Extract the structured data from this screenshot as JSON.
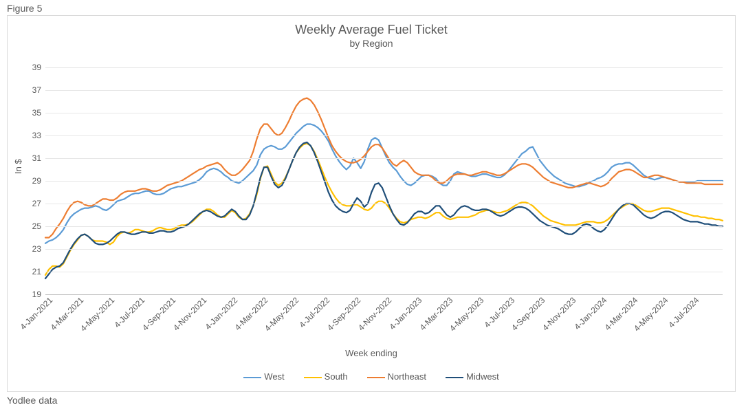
{
  "figure_label": "Figure 5",
  "footer": "Yodlee data",
  "chart": {
    "type": "line",
    "title": "Weekly Average Fuel Ticket",
    "subtitle": "by Region",
    "title_fontsize": 18,
    "subtitle_fontsize": 14,
    "title_color": "#595959",
    "x_axis": {
      "label": "Week ending",
      "tick_labels": [
        "4-Jan-2021",
        "4-Mar-2021",
        "4-May-2021",
        "4-Jul-2021",
        "4-Sep-2021",
        "4-Nov-2021",
        "4-Jan-2022",
        "4-Mar-2022",
        "4-May-2022",
        "4-Jul-2022",
        "4-Sep-2022",
        "4-Nov-2022",
        "4-Jan-2023",
        "4-Mar-2023",
        "4-May-2023",
        "4-Jul-2023",
        "4-Sep-2023",
        "4-Nov-2023",
        "4-Jan-2024",
        "4-Mar-2024",
        "4-May-2024",
        "4-Jul-2024"
      ],
      "label_fontsize": 13,
      "tick_fontsize": 12,
      "tick_rotation_deg": -45
    },
    "y_axis": {
      "label": "In $",
      "min": 19,
      "max": 39,
      "tick_step": 2,
      "label_fontsize": 13,
      "tick_fontsize": 12
    },
    "grid": {
      "visible": true,
      "color": "#e6e6e6"
    },
    "background_color": "#ffffff",
    "plot_border_color": "#d9d9d9",
    "num_points": 190,
    "legend": {
      "position": "bottom-center",
      "items": [
        {
          "name": "West",
          "color": "#5b9bd5"
        },
        {
          "name": "South",
          "color": "#ffc000"
        },
        {
          "name": "Northeast",
          "color": "#ed7d31"
        },
        {
          "name": "Midwest",
          "color": "#1f4e79"
        }
      ]
    },
    "line_width": 2.2,
    "series": {
      "West": [
        23.5,
        23.7,
        23.8,
        24.0,
        24.3,
        24.7,
        25.3,
        25.8,
        26.1,
        26.3,
        26.5,
        26.6,
        26.6,
        26.7,
        26.8,
        26.7,
        26.5,
        26.4,
        26.6,
        26.9,
        27.2,
        27.3,
        27.4,
        27.6,
        27.8,
        27.9,
        27.9,
        28.0,
        28.1,
        28.1,
        27.9,
        27.8,
        27.8,
        27.9,
        28.1,
        28.3,
        28.4,
        28.5,
        28.5,
        28.6,
        28.7,
        28.8,
        28.9,
        29.1,
        29.4,
        29.8,
        30.0,
        30.1,
        30.0,
        29.8,
        29.5,
        29.3,
        29.0,
        28.9,
        28.8,
        29.0,
        29.3,
        29.6,
        29.9,
        30.4,
        31.3,
        31.8,
        32.0,
        32.1,
        32.0,
        31.8,
        31.8,
        32.0,
        32.4,
        32.8,
        33.2,
        33.5,
        33.8,
        34.0,
        34.0,
        33.9,
        33.7,
        33.4,
        33.0,
        32.5,
        31.8,
        31.2,
        30.7,
        30.3,
        30.0,
        30.3,
        31.0,
        30.6,
        30.1,
        30.7,
        31.8,
        32.6,
        32.8,
        32.6,
        31.9,
        31.2,
        30.6,
        30.2,
        29.9,
        29.4,
        29.0,
        28.7,
        28.6,
        28.8,
        29.1,
        29.4,
        29.5,
        29.5,
        29.4,
        29.2,
        28.8,
        28.6,
        28.6,
        29.0,
        29.6,
        29.8,
        29.7,
        29.6,
        29.5,
        29.4,
        29.4,
        29.5,
        29.6,
        29.6,
        29.5,
        29.4,
        29.3,
        29.3,
        29.5,
        29.8,
        30.2,
        30.6,
        31.0,
        31.4,
        31.6,
        31.9,
        32.0,
        31.4,
        30.8,
        30.4,
        30.0,
        29.7,
        29.4,
        29.2,
        29.0,
        28.8,
        28.7,
        28.6,
        28.5,
        28.5,
        28.6,
        28.7,
        28.9,
        29.0,
        29.2,
        29.3,
        29.5,
        29.8,
        30.2,
        30.4,
        30.5,
        30.5,
        30.6,
        30.6,
        30.4,
        30.1,
        29.8,
        29.5,
        29.3,
        29.2,
        29.1,
        29.2,
        29.3,
        29.3,
        29.2,
        29.1,
        29.0,
        28.9,
        28.9,
        28.9,
        28.9,
        28.9,
        29.0,
        29.0,
        29.0,
        29.0,
        29.0,
        29.0,
        29.0,
        29.0
      ],
      "South": [
        20.7,
        21.2,
        21.5,
        21.5,
        21.4,
        21.7,
        22.3,
        22.9,
        23.4,
        23.8,
        24.2,
        24.3,
        24.1,
        23.8,
        23.7,
        23.7,
        23.7,
        23.6,
        23.4,
        23.6,
        24.1,
        24.4,
        24.5,
        24.4,
        24.5,
        24.7,
        24.7,
        24.6,
        24.5,
        24.5,
        24.6,
        24.8,
        24.9,
        24.8,
        24.7,
        24.7,
        24.8,
        25.0,
        25.1,
        25.1,
        25.2,
        25.4,
        25.7,
        26.0,
        26.3,
        26.5,
        26.5,
        26.3,
        26.0,
        25.8,
        25.8,
        26.1,
        26.4,
        26.2,
        25.8,
        25.6,
        25.7,
        26.1,
        26.8,
        27.8,
        29.2,
        30.2,
        30.3,
        29.6,
        28.9,
        28.6,
        28.8,
        29.3,
        30.0,
        30.8,
        31.5,
        31.9,
        32.2,
        32.3,
        32.1,
        31.6,
        30.9,
        30.1,
        29.3,
        28.6,
        28.0,
        27.5,
        27.1,
        26.9,
        26.8,
        26.8,
        26.9,
        26.9,
        26.7,
        26.5,
        26.4,
        26.6,
        27.0,
        27.2,
        27.2,
        27.0,
        26.6,
        26.1,
        25.7,
        25.4,
        25.3,
        25.4,
        25.6,
        25.7,
        25.8,
        25.8,
        25.7,
        25.8,
        26.0,
        26.2,
        26.2,
        25.9,
        25.7,
        25.6,
        25.7,
        25.8,
        25.8,
        25.8,
        25.8,
        25.9,
        26.0,
        26.2,
        26.3,
        26.4,
        26.4,
        26.3,
        26.2,
        26.2,
        26.3,
        26.4,
        26.6,
        26.8,
        27.0,
        27.1,
        27.1,
        27.0,
        26.8,
        26.5,
        26.2,
        25.9,
        25.7,
        25.5,
        25.4,
        25.3,
        25.2,
        25.1,
        25.1,
        25.1,
        25.1,
        25.2,
        25.3,
        25.4,
        25.4,
        25.4,
        25.3,
        25.3,
        25.4,
        25.6,
        25.9,
        26.2,
        26.5,
        26.7,
        26.9,
        27.0,
        27.0,
        26.8,
        26.6,
        26.4,
        26.3,
        26.3,
        26.4,
        26.5,
        26.6,
        26.6,
        26.6,
        26.5,
        26.4,
        26.3,
        26.2,
        26.1,
        26.0,
        25.9,
        25.9,
        25.8,
        25.8,
        25.7,
        25.7,
        25.6,
        25.6,
        25.5
      ],
      "Northeast": [
        24.0,
        24.0,
        24.3,
        24.8,
        25.2,
        25.7,
        26.3,
        26.8,
        27.1,
        27.2,
        27.1,
        26.9,
        26.8,
        26.8,
        27.0,
        27.2,
        27.4,
        27.4,
        27.3,
        27.3,
        27.5,
        27.8,
        28.0,
        28.1,
        28.1,
        28.1,
        28.2,
        28.3,
        28.3,
        28.2,
        28.1,
        28.1,
        28.2,
        28.4,
        28.6,
        28.7,
        28.8,
        28.9,
        29.0,
        29.2,
        29.4,
        29.6,
        29.8,
        30.0,
        30.1,
        30.3,
        30.4,
        30.5,
        30.6,
        30.4,
        30.0,
        29.7,
        29.5,
        29.5,
        29.7,
        30.0,
        30.4,
        30.8,
        31.6,
        32.7,
        33.6,
        34.0,
        34.0,
        33.6,
        33.2,
        33.0,
        33.2,
        33.7,
        34.3,
        35.0,
        35.6,
        36.0,
        36.2,
        36.3,
        36.1,
        35.7,
        35.1,
        34.4,
        33.6,
        32.8,
        32.1,
        31.6,
        31.2,
        30.9,
        30.7,
        30.6,
        30.6,
        30.7,
        30.9,
        31.2,
        31.6,
        32.0,
        32.2,
        32.2,
        31.9,
        31.4,
        30.9,
        30.5,
        30.3,
        30.6,
        30.8,
        30.6,
        30.2,
        29.8,
        29.6,
        29.5,
        29.5,
        29.5,
        29.3,
        29.0,
        28.8,
        28.8,
        29.0,
        29.3,
        29.5,
        29.6,
        29.6,
        29.6,
        29.5,
        29.5,
        29.6,
        29.7,
        29.8,
        29.8,
        29.7,
        29.6,
        29.5,
        29.5,
        29.6,
        29.8,
        30.0,
        30.2,
        30.4,
        30.5,
        30.5,
        30.4,
        30.2,
        29.9,
        29.6,
        29.3,
        29.1,
        28.9,
        28.8,
        28.7,
        28.6,
        28.5,
        28.4,
        28.4,
        28.5,
        28.6,
        28.7,
        28.8,
        28.8,
        28.7,
        28.6,
        28.5,
        28.6,
        28.8,
        29.2,
        29.5,
        29.8,
        29.9,
        30.0,
        30.0,
        29.9,
        29.7,
        29.5,
        29.3,
        29.3,
        29.4,
        29.5,
        29.5,
        29.4,
        29.3,
        29.2,
        29.1,
        29.0,
        28.9,
        28.9,
        28.8,
        28.8,
        28.8,
        28.8,
        28.8,
        28.7,
        28.7,
        28.7,
        28.7,
        28.7,
        28.7
      ],
      "Midwest": [
        20.4,
        20.8,
        21.2,
        21.4,
        21.5,
        21.8,
        22.4,
        23.0,
        23.5,
        23.9,
        24.2,
        24.3,
        24.1,
        23.8,
        23.5,
        23.4,
        23.4,
        23.5,
        23.7,
        24.0,
        24.3,
        24.5,
        24.5,
        24.4,
        24.3,
        24.3,
        24.4,
        24.5,
        24.5,
        24.4,
        24.4,
        24.5,
        24.6,
        24.6,
        24.5,
        24.5,
        24.6,
        24.8,
        24.9,
        25.0,
        25.2,
        25.5,
        25.8,
        26.1,
        26.3,
        26.4,
        26.3,
        26.1,
        25.9,
        25.8,
        25.9,
        26.2,
        26.5,
        26.3,
        25.9,
        25.6,
        25.6,
        26.0,
        26.8,
        28.0,
        29.3,
        30.2,
        30.2,
        29.4,
        28.7,
        28.4,
        28.6,
        29.2,
        30.0,
        30.8,
        31.5,
        32.0,
        32.3,
        32.4,
        32.1,
        31.5,
        30.7,
        29.8,
        28.9,
        28.0,
        27.3,
        26.8,
        26.5,
        26.3,
        26.2,
        26.4,
        27.0,
        27.5,
        27.2,
        26.7,
        27.0,
        28.0,
        28.7,
        28.8,
        28.4,
        27.6,
        26.8,
        26.1,
        25.6,
        25.2,
        25.1,
        25.3,
        25.7,
        26.1,
        26.3,
        26.3,
        26.1,
        26.2,
        26.5,
        26.8,
        26.8,
        26.4,
        26.0,
        25.8,
        26.0,
        26.4,
        26.7,
        26.8,
        26.7,
        26.5,
        26.4,
        26.4,
        26.5,
        26.5,
        26.4,
        26.2,
        26.0,
        25.9,
        26.0,
        26.2,
        26.4,
        26.6,
        26.7,
        26.7,
        26.6,
        26.4,
        26.1,
        25.8,
        25.5,
        25.3,
        25.1,
        25.0,
        24.9,
        24.8,
        24.6,
        24.4,
        24.3,
        24.3,
        24.5,
        24.8,
        25.1,
        25.2,
        25.1,
        24.8,
        24.6,
        24.5,
        24.7,
        25.1,
        25.6,
        26.1,
        26.5,
        26.8,
        27.0,
        27.0,
        26.9,
        26.6,
        26.3,
        26.0,
        25.8,
        25.7,
        25.8,
        26.0,
        26.2,
        26.3,
        26.3,
        26.2,
        26.0,
        25.8,
        25.6,
        25.5,
        25.4,
        25.4,
        25.4,
        25.3,
        25.2,
        25.2,
        25.1,
        25.1,
        25.0,
        25.0
      ]
    }
  }
}
